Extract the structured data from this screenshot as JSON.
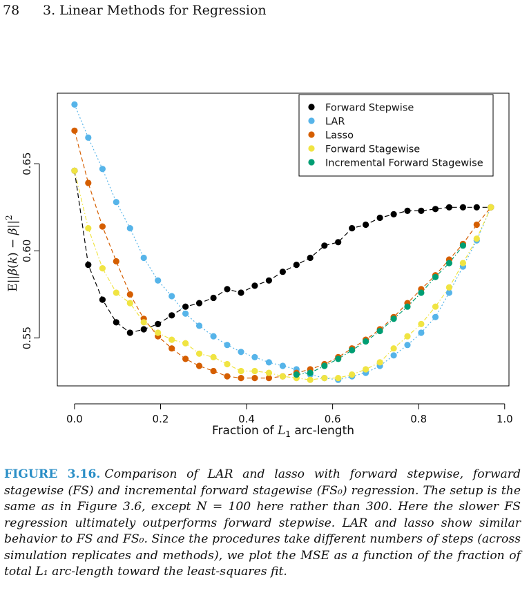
{
  "header": {
    "page_number": "78",
    "chapter": "3. Linear Methods for Regression"
  },
  "chart_data": {
    "type": "scatter",
    "title": "",
    "xlabel": "Fraction of L1 arc-length",
    "ylabel": "E||β̂(k) − β||²",
    "xlim": [
      -0.04,
      1.01
    ],
    "ylim": [
      0.5225,
      0.6905
    ],
    "xticks": [
      "0.0",
      "0.2",
      "0.4",
      "0.6",
      "0.8",
      "1.0"
    ],
    "yticks": [
      "0.55",
      "0.60",
      "0.65"
    ],
    "legend_position": "top-right",
    "grid": false,
    "series": [
      {
        "name": "Forward Stepwise",
        "color": "#000000",
        "line_style": "solid/dash",
        "x": [
          0.0,
          0.032,
          0.065,
          0.097,
          0.129,
          0.161,
          0.194,
          0.226,
          0.258,
          0.29,
          0.323,
          0.355,
          0.387,
          0.419,
          0.452,
          0.484,
          0.516,
          0.548,
          0.581,
          0.613,
          0.645,
          0.677,
          0.71,
          0.742,
          0.774,
          0.806,
          0.839,
          0.871,
          0.903,
          0.935,
          0.968
        ],
        "y": [
          0.646,
          0.592,
          0.572,
          0.559,
          0.553,
          0.555,
          0.558,
          0.563,
          0.568,
          0.57,
          0.573,
          0.578,
          0.576,
          0.58,
          0.583,
          0.588,
          0.592,
          0.596,
          0.603,
          0.605,
          0.613,
          0.615,
          0.619,
          0.621,
          0.623,
          0.623,
          0.624,
          0.625,
          0.625,
          0.625,
          0.625
        ]
      },
      {
        "name": "LAR",
        "color": "#56b4e9",
        "line_style": "dotted",
        "x": [
          0.0,
          0.032,
          0.065,
          0.097,
          0.129,
          0.161,
          0.194,
          0.226,
          0.258,
          0.29,
          0.323,
          0.355,
          0.387,
          0.419,
          0.452,
          0.484,
          0.516,
          0.548,
          0.581,
          0.613,
          0.645,
          0.677,
          0.71,
          0.742,
          0.774,
          0.806,
          0.839,
          0.871,
          0.903,
          0.935,
          0.968
        ],
        "y": [
          0.684,
          0.665,
          0.647,
          0.628,
          0.613,
          0.596,
          0.583,
          0.574,
          0.564,
          0.557,
          0.551,
          0.546,
          0.542,
          0.539,
          0.536,
          0.534,
          0.532,
          0.529,
          0.527,
          0.526,
          0.528,
          0.53,
          0.534,
          0.54,
          0.546,
          0.553,
          0.562,
          0.576,
          0.591,
          0.606,
          0.625
        ]
      },
      {
        "name": "Lasso",
        "color": "#d55e00",
        "line_style": "dashed",
        "x": [
          0.0,
          0.032,
          0.065,
          0.097,
          0.129,
          0.161,
          0.194,
          0.226,
          0.258,
          0.29,
          0.323,
          0.355,
          0.387,
          0.419,
          0.452,
          0.484,
          0.516,
          0.548,
          0.581,
          0.613,
          0.645,
          0.677,
          0.71,
          0.742,
          0.774,
          0.806,
          0.839,
          0.871,
          0.903,
          0.935,
          0.968
        ],
        "y": [
          0.669,
          0.639,
          0.614,
          0.594,
          0.575,
          0.561,
          0.551,
          0.544,
          0.538,
          0.534,
          0.531,
          0.528,
          0.527,
          0.527,
          0.527,
          0.528,
          0.53,
          0.532,
          0.535,
          0.539,
          0.544,
          0.549,
          0.555,
          0.562,
          0.57,
          0.578,
          0.586,
          0.595,
          0.604,
          0.615,
          0.625
        ]
      },
      {
        "name": "Forward Stagewise",
        "color": "#f0e442",
        "line_style": "dash-dot",
        "x": [
          0.0,
          0.032,
          0.065,
          0.097,
          0.129,
          0.161,
          0.194,
          0.226,
          0.258,
          0.29,
          0.323,
          0.355,
          0.387,
          0.419,
          0.452,
          0.484,
          0.516,
          0.548,
          0.581,
          0.613,
          0.645,
          0.677,
          0.71,
          0.742,
          0.774,
          0.806,
          0.839,
          0.871,
          0.903,
          0.935,
          0.968
        ],
        "y": [
          0.646,
          0.613,
          0.59,
          0.576,
          0.57,
          0.559,
          0.553,
          0.549,
          0.547,
          0.541,
          0.539,
          0.535,
          0.531,
          0.531,
          0.53,
          0.528,
          0.527,
          0.526,
          0.527,
          0.527,
          0.529,
          0.532,
          0.536,
          0.544,
          0.551,
          0.558,
          0.568,
          0.579,
          0.593,
          0.607,
          0.625
        ]
      },
      {
        "name": "Incremental Forward Stagewise",
        "color": "#009e73",
        "line_style": "dash-dot",
        "x": [
          0.516,
          0.548,
          0.581,
          0.613,
          0.645,
          0.677,
          0.71,
          0.742,
          0.774,
          0.806,
          0.839,
          0.871,
          0.903
        ],
        "y": [
          0.529,
          0.53,
          0.534,
          0.538,
          0.543,
          0.548,
          0.554,
          0.561,
          0.568,
          0.576,
          0.585,
          0.593,
          0.603
        ]
      }
    ]
  },
  "caption": {
    "label": "FIGURE 3.16.",
    "text": "Comparison of LAR and lasso with forward stepwise, forward stagewise (FS) and incremental forward stagewise (FS₀) regression. The setup is the same as in Figure 3.6, except N = 100 here rather than 300. Here the slower FS regression ultimately outperforms forward stepwise. LAR and lasso show similar behavior to FS and FS₀. Since the procedures take different numbers of steps (across simulation replicates and methods), we plot the MSE as a function of the fraction of total L₁ arc-length toward the least-squares fit."
  }
}
